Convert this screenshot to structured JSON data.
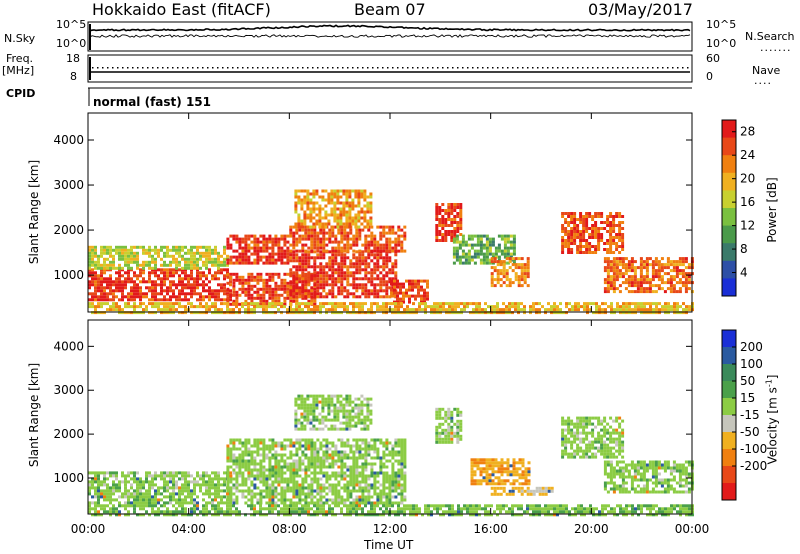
{
  "header": {
    "station": "Hokkaido East (fitACF)",
    "beam": "Beam 07",
    "date": "03/May/2017"
  },
  "top_panels": {
    "nsky_label": "N.Sky",
    "nsky_ticks": [
      "10^5",
      "10^0"
    ],
    "nsearch_label": "N.Search",
    "nsearch_ticks": [
      "10^5",
      "10^0"
    ],
    "freq_label": "Freq.",
    "freq_unit": "[MHz]",
    "freq_ticks": [
      "18",
      "8"
    ],
    "nave_label": "Nave",
    "nave_ticks": [
      "60",
      "0"
    ],
    "cpid_label": "CPID",
    "cpid_value": "normal (fast) 151"
  },
  "colors": {
    "power_scale": [
      "#1a2fd6",
      "#2d4fa6",
      "#3a7a6a",
      "#4a9a4a",
      "#7ac040",
      "#c8d030",
      "#f0b020",
      "#f08010",
      "#e84818",
      "#e21a1a"
    ],
    "velocity_scale": [
      "#1a2fd6",
      "#2a5aa0",
      "#3a8a5a",
      "#4aa04a",
      "#8ccc44",
      "#c6c6bc",
      "#f0b020",
      "#f08010",
      "#e84818",
      "#e21a1a"
    ]
  },
  "chart_data": [
    {
      "type": "heatmap",
      "title": "Power",
      "ylabel": "Slant Range [km]",
      "xlabel": "Time UT",
      "x_ticks": [
        "00:00",
        "04:00",
        "08:00",
        "12:00",
        "16:00",
        "20:00",
        "00:00"
      ],
      "y_ticks": [
        1000,
        2000,
        3000,
        4000
      ],
      "ylim": [
        180,
        4600
      ],
      "xlim_hours": [
        0,
        24
      ],
      "colorbar_label": "Power [dB]",
      "colorbar_ticks": [
        4,
        8,
        12,
        16,
        20,
        24,
        28
      ],
      "clim": [
        0,
        30
      ],
      "regions": [
        {
          "t0": 0.0,
          "t1": 5.7,
          "r0": 450,
          "r1": 1150,
          "v": 27
        },
        {
          "t0": 0.0,
          "t1": 5.5,
          "r0": 1150,
          "r1": 1650,
          "v": 16
        },
        {
          "t0": 5.5,
          "t1": 9.0,
          "r0": 350,
          "r1": 1050,
          "v": 26
        },
        {
          "t0": 5.5,
          "t1": 8.0,
          "r0": 1300,
          "r1": 1900,
          "v": 27
        },
        {
          "t0": 8.0,
          "t1": 12.2,
          "r0": 550,
          "r1": 1550,
          "v": 27
        },
        {
          "t0": 8.0,
          "t1": 12.6,
          "r0": 1550,
          "r1": 2100,
          "v": 25
        },
        {
          "t0": 8.2,
          "t1": 11.2,
          "r0": 2100,
          "r1": 2900,
          "v": 21
        },
        {
          "t0": 12.0,
          "t1": 13.5,
          "r0": 400,
          "r1": 900,
          "v": 26
        },
        {
          "t0": 13.8,
          "t1": 14.8,
          "r0": 1800,
          "r1": 2600,
          "v": 27
        },
        {
          "t0": 14.5,
          "t1": 17.0,
          "r0": 1300,
          "r1": 1900,
          "v": 12
        },
        {
          "t0": 16.0,
          "t1": 17.5,
          "r0": 800,
          "r1": 1400,
          "v": 22
        },
        {
          "t0": 18.8,
          "t1": 21.3,
          "r0": 1500,
          "r1": 2400,
          "v": 25
        },
        {
          "t0": 20.5,
          "t1": 24.0,
          "r0": 650,
          "r1": 1400,
          "v": 24
        },
        {
          "t0": 0.0,
          "t1": 24.0,
          "r0": 180,
          "r1": 400,
          "v": 19
        }
      ]
    },
    {
      "type": "heatmap",
      "title": "Velocity",
      "ylabel": "Slant Range [km]",
      "xlabel": "Time UT",
      "x_ticks": [
        "00:00",
        "04:00",
        "08:00",
        "12:00",
        "16:00",
        "20:00",
        "00:00"
      ],
      "y_ticks": [
        1000,
        2000,
        3000,
        4000
      ],
      "ylim": [
        180,
        4600
      ],
      "xlim_hours": [
        0,
        24
      ],
      "colorbar_label": "Velocity [m s^-1]",
      "colorbar_ticks": [
        200,
        100,
        50,
        15,
        -15,
        -50,
        -100,
        -200
      ],
      "clim": [
        -250,
        250
      ],
      "regions": [
        {
          "t0": 0.0,
          "t1": 5.7,
          "r0": 450,
          "r1": 1150,
          "v": 0
        },
        {
          "t0": 5.5,
          "t1": 12.6,
          "r0": 400,
          "r1": 1900,
          "v": 0
        },
        {
          "t0": 8.2,
          "t1": 11.2,
          "r0": 2100,
          "r1": 2900,
          "v": 0
        },
        {
          "t0": 13.8,
          "t1": 14.8,
          "r0": 1800,
          "r1": 2600,
          "v": 0
        },
        {
          "t0": 15.2,
          "t1": 17.5,
          "r0": 850,
          "r1": 1450,
          "v": -90
        },
        {
          "t0": 16.0,
          "t1": 18.5,
          "r0": 600,
          "r1": 800,
          "v": -60
        },
        {
          "t0": 18.8,
          "t1": 21.3,
          "r0": 1500,
          "r1": 2400,
          "v": 0
        },
        {
          "t0": 20.5,
          "t1": 24.0,
          "r0": 650,
          "r1": 1400,
          "v": 0
        },
        {
          "t0": 0.0,
          "t1": 24.0,
          "r0": 180,
          "r1": 400,
          "v": 10
        }
      ]
    }
  ]
}
